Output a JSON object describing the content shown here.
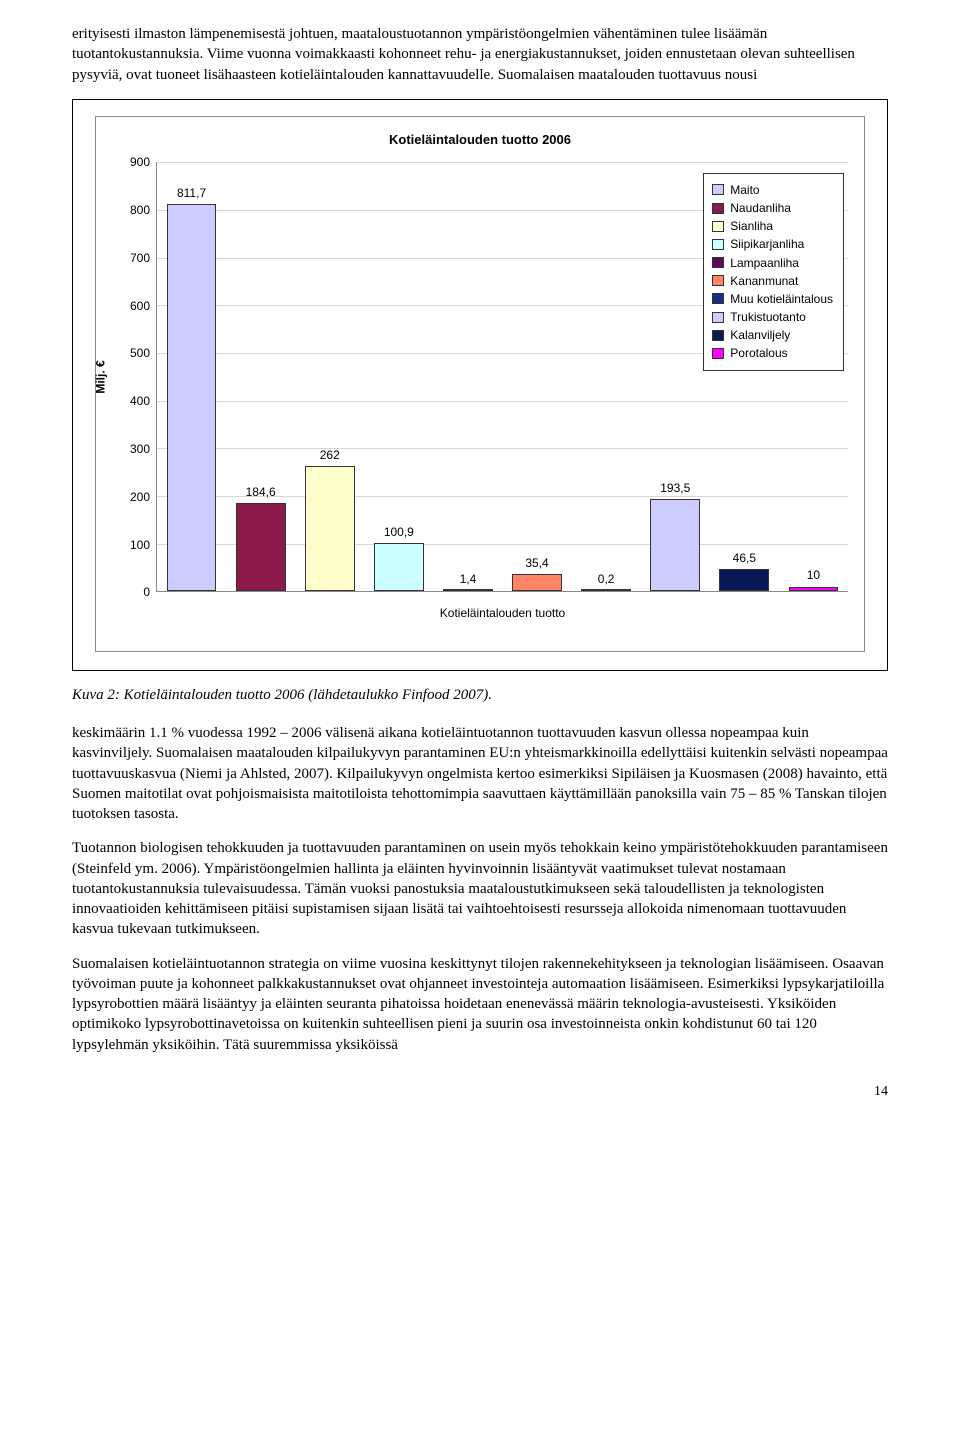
{
  "para1": "erityisesti ilmaston lämpenemisestä johtuen, maataloustuotannon ympäristöongelmien vähentäminen tulee lisäämän tuotantokustannuksia. Viime vuonna voimakkaasti kohonneet rehu- ja energiakustannukset, joiden ennustetaan olevan suhteellisen pysyviä, ovat tuoneet lisähaasteen kotieläintalouden kannattavuudelle. Suomalaisen maatalouden tuottavuus nousi",
  "caption": "Kuva 2: Kotieläintalouden tuotto 2006 (lähdetaulukko Finfood 2007).",
  "para2": "keskimäärin 1.1 % vuodessa 1992 – 2006 välisenä aikana kotieläintuotannon tuottavuuden kasvun ollessa nopeampaa kuin kasvinviljely. Suomalaisen maatalouden kilpailukyvyn parantaminen EU:n yhteismarkkinoilla edellyttäisi kuitenkin selvästi nopeampaa tuottavuuskasvua (Niemi ja Ahlsted, 2007). Kilpailukyvyn ongelmista kertoo esimerkiksi Sipiläisen ja Kuosmasen (2008) havainto, että Suomen maitotilat ovat pohjoismaisista maitotiloista tehottomimpia saavuttaen käyttämillään panoksilla vain 75 – 85 % Tanskan tilojen tuotoksen tasosta.",
  "para3": "Tuotannon biologisen tehokkuuden ja tuottavuuden parantaminen on usein myös tehokkain keino ympäristötehokkuuden parantamiseen (Steinfeld ym. 2006). Ympäristöongelmien hallinta ja eläinten hyvinvoinnin lisääntyvät vaatimukset tulevat nostamaan tuotantokustannuksia tulevaisuudessa. Tämän vuoksi panostuksia maataloustutkimukseen sekä taloudellisten ja teknologisten innovaatioiden kehittämiseen pitäisi supistamisen sijaan lisätä tai vaihtoehtoisesti resursseja allokoida nimenomaan tuottavuuden kasvua tukevaan tutkimukseen.",
  "para4": "Suomalaisen kotieläintuotannon strategia on viime vuosina keskittynyt tilojen rakennekehitykseen ja teknologian lisäämiseen. Osaavan työvoiman puute ja kohonneet palkkakustannukset ovat ohjanneet investointeja automaation lisäämiseen. Esimerkiksi lypsykarjatiloilla lypsyrobottien määrä lisääntyy ja eläinten seuranta pihatoissa hoidetaan enenevässä määrin teknologia-avusteisesti. Yksiköiden optimikoko lypsyrobottinavetoissa on kuitenkin suhteellisen pieni ja suurin osa investoinneista onkin kohdistunut 60 tai 120 lypsylehmän yksiköihin. Tätä suuremmissa yksiköissä",
  "page_number": "14",
  "chart": {
    "type": "bar",
    "title": "Kotieläintalouden tuotto 2006",
    "y_axis_label": "Milj. €",
    "ylim": [
      0,
      900
    ],
    "ytick_step": 100,
    "x_axis_label": "Kotieläintalouden tuotto",
    "grid_color": "#d8d8d8",
    "border_color": "#888888",
    "background_color": "#ffffff",
    "bar_border_color": "#333333",
    "label_fontsize": 12,
    "title_fontsize": 13,
    "series": [
      {
        "label": "Maito",
        "value": 811.7,
        "display": "811,7",
        "color": "#ccccff"
      },
      {
        "label": "Naudanliha",
        "value": 184.6,
        "display": "184,6",
        "color": "#8b1a4b"
      },
      {
        "label": "Sianliha",
        "value": 262,
        "display": "262",
        "color": "#ffffcc"
      },
      {
        "label": "Siipikarjanliha",
        "value": 100.9,
        "display": "100,9",
        "color": "#ccffff"
      },
      {
        "label": "Lampaanliha",
        "value": 1.4,
        "display": "1,4",
        "color": "#5a0a5a"
      },
      {
        "label": "Kananmunat",
        "value": 35.4,
        "display": "35,4",
        "color": "#ff8566"
      },
      {
        "label": "Muu kotieläintalous",
        "value": 0.2,
        "display": "0,2",
        "color": "#1b2f80"
      },
      {
        "label": "Trukistuotanto",
        "value": 193.5,
        "display": "193,5",
        "color": "#ccccff"
      },
      {
        "label": "Kalanviljely",
        "value": 46.5,
        "display": "46,5",
        "color": "#0a1956"
      },
      {
        "label": "Porotalous",
        "value": 10,
        "display": "10",
        "color": "#ff00ff"
      }
    ]
  }
}
